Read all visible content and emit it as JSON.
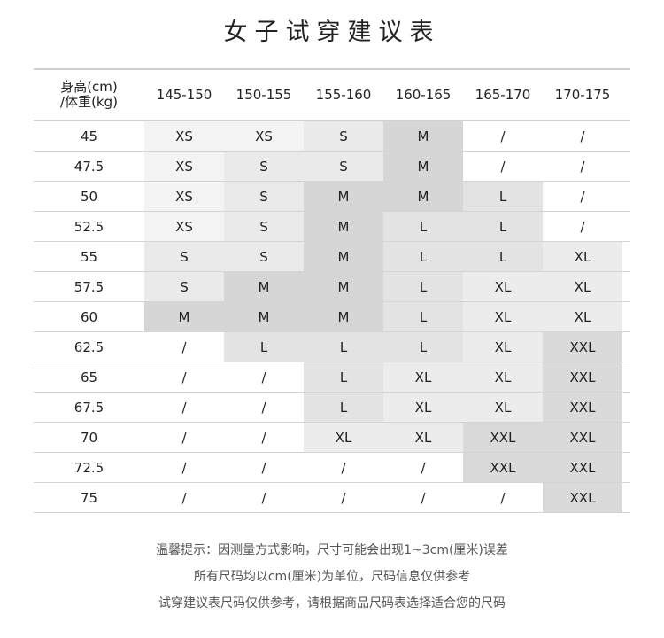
{
  "title": "女子试穿建议表",
  "table": {
    "corner_line1": "身高(cm)",
    "corner_line2": "/体重(kg)",
    "columns": [
      "145-150",
      "150-155",
      "155-160",
      "160-165",
      "165-170",
      "170-175"
    ],
    "rows": [
      {
        "weight": "45",
        "sizes": [
          "XS",
          "XS",
          "S",
          "M",
          "/",
          "/"
        ]
      },
      {
        "weight": "47.5",
        "sizes": [
          "XS",
          "S",
          "S",
          "M",
          "/",
          "/"
        ]
      },
      {
        "weight": "50",
        "sizes": [
          "XS",
          "S",
          "M",
          "M",
          "L",
          "/"
        ]
      },
      {
        "weight": "52.5",
        "sizes": [
          "XS",
          "S",
          "M",
          "L",
          "L",
          "/"
        ]
      },
      {
        "weight": "55",
        "sizes": [
          "S",
          "S",
          "M",
          "L",
          "L",
          "XL"
        ]
      },
      {
        "weight": "57.5",
        "sizes": [
          "S",
          "M",
          "M",
          "L",
          "XL",
          "XL"
        ]
      },
      {
        "weight": "60",
        "sizes": [
          "M",
          "M",
          "M",
          "L",
          "XL",
          "XL"
        ]
      },
      {
        "weight": "62.5",
        "sizes": [
          "/",
          "L",
          "L",
          "L",
          "XL",
          "XXL"
        ]
      },
      {
        "weight": "65",
        "sizes": [
          "/",
          "/",
          "L",
          "XL",
          "XL",
          "XXL"
        ]
      },
      {
        "weight": "67.5",
        "sizes": [
          "/",
          "/",
          "L",
          "XL",
          "XL",
          "XXL"
        ]
      },
      {
        "weight": "70",
        "sizes": [
          "/",
          "/",
          "XL",
          "XL",
          "XXL",
          "XXL"
        ]
      },
      {
        "weight": "72.5",
        "sizes": [
          "/",
          "/",
          "/",
          "/",
          "XXL",
          "XXL"
        ]
      },
      {
        "weight": "75",
        "sizes": [
          "/",
          "/",
          "/",
          "/",
          "/",
          "XXL"
        ]
      }
    ]
  },
  "size_colors": {
    "XS": "#f3f3f3",
    "S": "#eaeaea",
    "M": "#d6d6d6",
    "L": "#e3e3e3",
    "XL": "#ececec",
    "XXL": "#dadada",
    "/": "#ffffff"
  },
  "notes": [
    "温馨提示：因测量方式影响，尺寸可能会出现1~3cm(厘米)误差",
    "所有尺码均以cm(厘米)为单位，尺码信息仅供参考",
    "试穿建议表尺码仅供参考，请根据商品尺码表选择适合您的尺码"
  ]
}
